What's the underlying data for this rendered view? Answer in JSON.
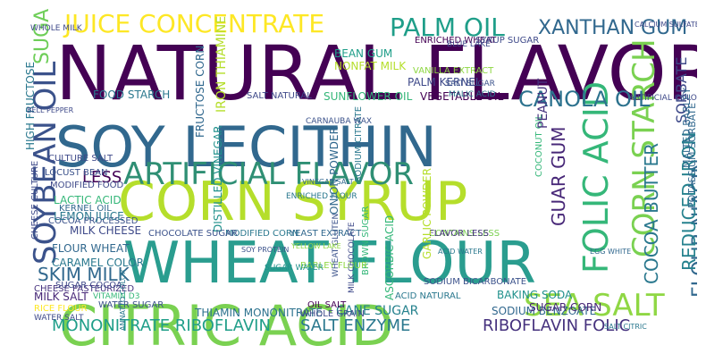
{
  "words": [
    {
      "text": "NATURAL FLAVOR",
      "color": "#440154"
    },
    {
      "text": "SOY LECITHIN",
      "color": "#31688e"
    },
    {
      "text": "CORN SYRUP",
      "color": "#b5de2b"
    },
    {
      "text": "WHEAT FLOUR",
      "color": "#2a9d8f"
    },
    {
      "text": "CITRIC ACID",
      "color": "#7ad151"
    },
    {
      "text": "ARTIFICIAL FLAVOR",
      "color": "#2f8f74"
    },
    {
      "text": "FOLIC ACID",
      "color": "#35b779"
    },
    {
      "text": "CORN STARCH",
      "color": "#7ad151"
    },
    {
      "text": "SOYBEAN OIL",
      "color": "#3b528b"
    },
    {
      "text": "SEA SALT",
      "color": "#8fd744"
    },
    {
      "text": "JUICE CONCENTRATE",
      "color": "#fde725"
    },
    {
      "text": "PALM OIL",
      "color": "#1f9e89"
    },
    {
      "text": "XANTHAN GUM",
      "color": "#31688e"
    },
    {
      "text": "CANOLA OIL",
      "color": "#2c728e"
    },
    {
      "text": "FLOUR NIACIN",
      "color": "#31688e"
    },
    {
      "text": "REDUCED IRON",
      "color": "#26828e"
    },
    {
      "text": "COCOA BUTTER",
      "color": "#2a788e"
    },
    {
      "text": "GUAR GUM",
      "color": "#482878"
    },
    {
      "text": "SKIM MILK",
      "color": "#31688e"
    },
    {
      "text": "MONONITRATE RIBOFLAVIN",
      "color": "#1f9e89"
    },
    {
      "text": "SALT ENZYME",
      "color": "#2a788e"
    },
    {
      "text": "RIBOFLAVIN FOLIC",
      "color": "#46327e"
    },
    {
      "text": "SORBATE",
      "color": "#3e4989"
    },
    {
      "text": "POTASSIUM SORBATE",
      "color": "#31688e"
    },
    {
      "text": "SUGAR",
      "color": "#6ece58"
    },
    {
      "text": "LESS",
      "color": "#440154"
    },
    {
      "text": "LACTIC ACID",
      "color": "#35b779"
    },
    {
      "text": "MILK CHEESE",
      "color": "#3e4989"
    },
    {
      "text": "FLOUR WHEAT",
      "color": "#31688e"
    },
    {
      "text": "CARAMEL COLOR",
      "color": "#2a788e"
    },
    {
      "text": "COCOA PROCESSED",
      "color": "#3b528b"
    },
    {
      "text": "CHEESE CULTURE",
      "color": "#3e4989"
    },
    {
      "text": "THIAMIN MONONITRATE",
      "color": "#2c728e"
    },
    {
      "text": "CANE SUGAR",
      "color": "#26828e"
    },
    {
      "text": "SODIUM BENZOATE",
      "color": "#31688e"
    },
    {
      "text": "BAKING SODA",
      "color": "#21918c"
    },
    {
      "text": "SUGAR CORN",
      "color": "#482878"
    },
    {
      "text": "VEGETABLE OIL",
      "color": "#440154"
    },
    {
      "text": "SUNFLOWER OIL",
      "color": "#35b779"
    },
    {
      "text": "SALT NATURAL",
      "color": "#3e4989"
    },
    {
      "text": "FOOD STARCH",
      "color": "#2a788e"
    },
    {
      "text": "DISTILLED VINEGAR",
      "color": "#21918c"
    },
    {
      "text": "FRUCTOSE CORN",
      "color": "#31688e"
    },
    {
      "text": "IRON THIAMINE",
      "color": "#b5de2b"
    },
    {
      "text": "NONFAT MILK",
      "color": "#b5de2b"
    },
    {
      "text": "BEAN GUM",
      "color": "#1f9e89"
    },
    {
      "text": "ENRICHED WHEAT",
      "color": "#440154"
    },
    {
      "text": "PALM KERNEL",
      "color": "#3e4989"
    },
    {
      "text": "VANILLA EXTRACT",
      "color": "#8fd744"
    },
    {
      "text": "SYRUP SUGAR",
      "color": "#3e4989"
    },
    {
      "text": "MODIFIED CORN",
      "color": "#2a788e"
    },
    {
      "text": "CHOCOLATE SUGAR",
      "color": "#3b528b"
    },
    {
      "text": "YEAST EXTRACT",
      "color": "#31688e"
    },
    {
      "text": "CONTAINS LESS",
      "color": "#7ad151"
    },
    {
      "text": "FLAVOR LESS",
      "color": "#46327e"
    },
    {
      "text": "ASCORBIC ACID",
      "color": "#35b779"
    },
    {
      "text": "GARLIC POWDER",
      "color": "#b5de2b"
    },
    {
      "text": "ONION POWDER",
      "color": "#31688e"
    },
    {
      "text": "SODIUM CITRATE",
      "color": "#2a788e"
    },
    {
      "text": "MILK SALT",
      "color": "#482878"
    },
    {
      "text": "CHEESE PASTEURIZED",
      "color": "#46327e"
    },
    {
      "text": "LEMON JUICE",
      "color": "#2a788e"
    },
    {
      "text": "KERNEL OIL",
      "color": "#31688e"
    },
    {
      "text": "MODIFIED FOOD",
      "color": "#3e4989"
    },
    {
      "text": "LOCUST BEAN",
      "color": "#3b528b"
    },
    {
      "text": "CULTURE SALT",
      "color": "#3e4989"
    },
    {
      "text": "HIGH FRUCTOSE",
      "color": "#2a788e"
    },
    {
      "text": "COCONUT OIL",
      "color": "#35b779"
    },
    {
      "text": "PEANUT",
      "color": "#46327e"
    },
    {
      "text": "MALTED BARLEY",
      "color": "#31688e"
    },
    {
      "text": "RICE FLOUR",
      "color": "#fde725"
    },
    {
      "text": "SUGAR COCOA",
      "color": "#3e4989"
    },
    {
      "text": "WATER SUGAR",
      "color": "#3b528b"
    },
    {
      "text": "WHOLE GRAIN",
      "color": "#3e4989"
    },
    {
      "text": "OIL SALT",
      "color": "#440154"
    },
    {
      "text": "ACID NATURAL",
      "color": "#2a788e"
    },
    {
      "text": "SODIUM BICARBONATE",
      "color": "#3b528b"
    },
    {
      "text": "BROWN SUGAR",
      "color": "#35b779"
    },
    {
      "text": "ENRICHED FLOUR",
      "color": "#2a788e"
    },
    {
      "text": "BARLEY FLOUR",
      "color": "#8fd744"
    },
    {
      "text": "WATER SALT",
      "color": "#3e4989"
    },
    {
      "text": "WHOLE MILK",
      "color": "#3e4989"
    },
    {
      "text": "SALT SUGAR",
      "color": "#3b528b"
    },
    {
      "text": "BLUE LAKE",
      "color": "#3e4989"
    },
    {
      "text": "MALIC ACID",
      "color": "#2a788e"
    },
    {
      "text": "VITAMIN D3",
      "color": "#35b779"
    },
    {
      "text": "MILK CHOCOLATE",
      "color": "#3e4989"
    },
    {
      "text": "WHEAT GLUTEN",
      "color": "#3b528b"
    },
    {
      "text": "SUGAR WATER",
      "color": "#21918c"
    },
    {
      "text": "VINEGAR SALT",
      "color": "#31688e"
    },
    {
      "text": "ACID WATER",
      "color": "#2a788e"
    },
    {
      "text": "ARTIFICIAL COLOR",
      "color": "#3e4989"
    },
    {
      "text": "SOY PROTEIN",
      "color": "#3b528b"
    },
    {
      "text": "EGG WHITE",
      "color": "#31688e"
    },
    {
      "text": "SALT CITRIC",
      "color": "#2a788e"
    },
    {
      "text": "BELL PEPPER",
      "color": "#3e4989"
    },
    {
      "text": "CALCIUM SULFATE",
      "color": "#3e4989"
    },
    {
      "text": "CARNAUBA WAX",
      "color": "#3b528b"
    },
    {
      "text": "YELLOW LAKE",
      "color": "#8fd744"
    },
    {
      "text": "ANNATTO COLOR",
      "color": "#2a788e"
    }
  ]
}
